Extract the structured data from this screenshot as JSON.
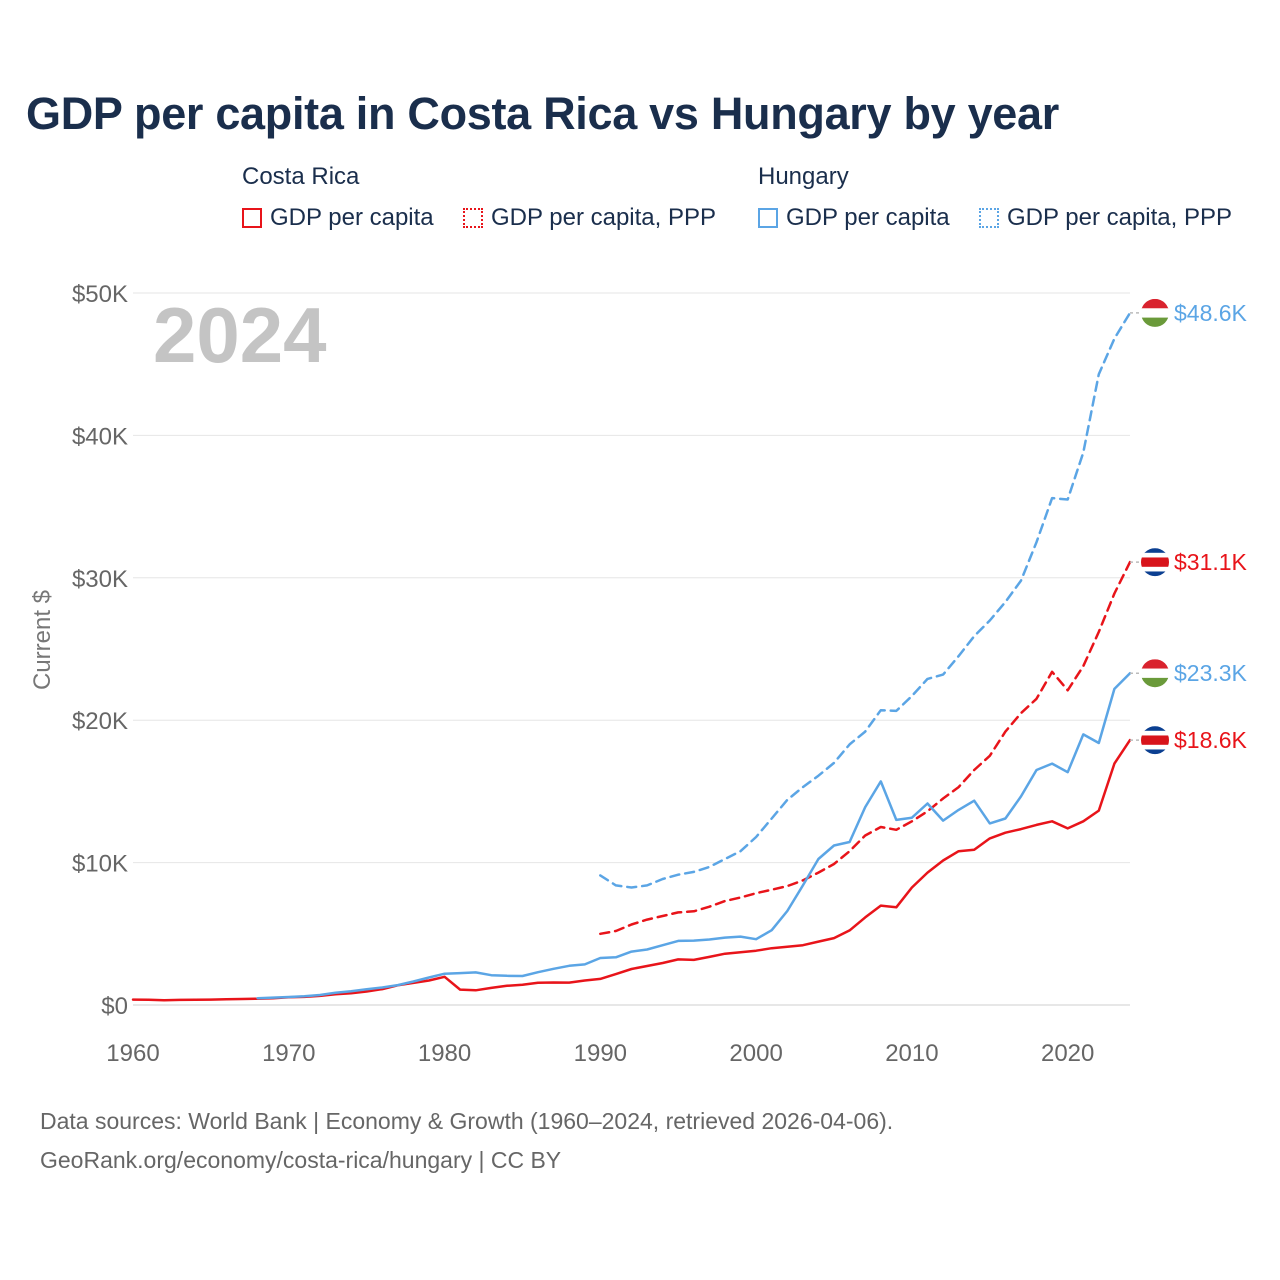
{
  "title": "GDP per capita in Costa Rica vs Hungary by year",
  "legend": {
    "groups": [
      {
        "name": "Costa Rica",
        "color": "#e8141a",
        "items": [
          {
            "label": "GDP per capita",
            "style": "solid"
          },
          {
            "label": "GDP per capita, PPP",
            "style": "dotted"
          }
        ]
      },
      {
        "name": "Hungary",
        "color": "#5ba5e5",
        "items": [
          {
            "label": "GDP per capita",
            "style": "solid"
          },
          {
            "label": "GDP per capita, PPP",
            "style": "dotted"
          }
        ]
      }
    ]
  },
  "year_label": "2024",
  "source": {
    "line1": "Data sources: World Bank | Economy & Growth (1960–2024, retrieved 2026-04-06).",
    "line2": "GeoRank.org/economy/costa-rica/hungary | CC BY"
  },
  "chart_data": {
    "type": "line",
    "title": "GDP per capita in Costa Rica vs Hungary by year",
    "xlabel": "",
    "ylabel": "Current $",
    "xlim": [
      1960,
      2024
    ],
    "ylim": [
      0,
      50000
    ],
    "x_ticks": [
      1960,
      1970,
      1980,
      1990,
      2000,
      2010,
      2020
    ],
    "y_ticks": [
      {
        "value": 0,
        "label": "$0"
      },
      {
        "value": 10000,
        "label": "$10K"
      },
      {
        "value": 20000,
        "label": "$20K"
      },
      {
        "value": 30000,
        "label": "$30K"
      },
      {
        "value": 40000,
        "label": "$40K"
      },
      {
        "value": 50000,
        "label": "$50K"
      }
    ],
    "grid": true,
    "series": [
      {
        "name": "Costa Rica GDP per capita",
        "country": "Costa Rica",
        "color": "#e8141a",
        "dash": "solid",
        "end_label": "$18.6K",
        "flag": "costa-rica",
        "points": [
          [
            1960,
            380
          ],
          [
            1961,
            370
          ],
          [
            1962,
            340
          ],
          [
            1963,
            360
          ],
          [
            1964,
            370
          ],
          [
            1965,
            380
          ],
          [
            1966,
            400
          ],
          [
            1967,
            420
          ],
          [
            1968,
            440
          ],
          [
            1969,
            470
          ],
          [
            1970,
            540
          ],
          [
            1971,
            570
          ],
          [
            1972,
            640
          ],
          [
            1973,
            760
          ],
          [
            1974,
            830
          ],
          [
            1975,
            950
          ],
          [
            1976,
            1120
          ],
          [
            1977,
            1380
          ],
          [
            1978,
            1550
          ],
          [
            1979,
            1720
          ],
          [
            1980,
            1980
          ],
          [
            1981,
            1080
          ],
          [
            1982,
            1030
          ],
          [
            1983,
            1200
          ],
          [
            1984,
            1350
          ],
          [
            1985,
            1420
          ],
          [
            1986,
            1560
          ],
          [
            1987,
            1580
          ],
          [
            1988,
            1570
          ],
          [
            1989,
            1720
          ],
          [
            1990,
            1830
          ],
          [
            1991,
            2170
          ],
          [
            1992,
            2530
          ],
          [
            1993,
            2740
          ],
          [
            1994,
            2950
          ],
          [
            1995,
            3200
          ],
          [
            1996,
            3170
          ],
          [
            1997,
            3380
          ],
          [
            1998,
            3600
          ],
          [
            1999,
            3710
          ],
          [
            2000,
            3810
          ],
          [
            2001,
            3990
          ],
          [
            2002,
            4090
          ],
          [
            2003,
            4200
          ],
          [
            2004,
            4450
          ],
          [
            2005,
            4700
          ],
          [
            2006,
            5240
          ],
          [
            2007,
            6150
          ],
          [
            2008,
            6980
          ],
          [
            2009,
            6860
          ],
          [
            2010,
            8250
          ],
          [
            2011,
            9300
          ],
          [
            2012,
            10150
          ],
          [
            2013,
            10800
          ],
          [
            2014,
            10900
          ],
          [
            2015,
            11700
          ],
          [
            2016,
            12100
          ],
          [
            2017,
            12350
          ],
          [
            2018,
            12650
          ],
          [
            2019,
            12900
          ],
          [
            2020,
            12400
          ],
          [
            2021,
            12900
          ],
          [
            2022,
            13650
          ],
          [
            2023,
            16950
          ],
          [
            2024,
            18600
          ]
        ]
      },
      {
        "name": "Costa Rica GDP per capita, PPP",
        "country": "Costa Rica",
        "color": "#e8141a",
        "dash": "dashed",
        "end_label": "$31.1K",
        "flag": "costa-rica",
        "points": [
          [
            1990,
            5000
          ],
          [
            1991,
            5200
          ],
          [
            1992,
            5650
          ],
          [
            1993,
            6000
          ],
          [
            1994,
            6250
          ],
          [
            1995,
            6500
          ],
          [
            1996,
            6580
          ],
          [
            1997,
            6900
          ],
          [
            1998,
            7300
          ],
          [
            1999,
            7550
          ],
          [
            2000,
            7850
          ],
          [
            2001,
            8100
          ],
          [
            2002,
            8350
          ],
          [
            2003,
            8750
          ],
          [
            2004,
            9300
          ],
          [
            2005,
            9900
          ],
          [
            2006,
            10800
          ],
          [
            2007,
            11900
          ],
          [
            2008,
            12500
          ],
          [
            2009,
            12300
          ],
          [
            2010,
            12900
          ],
          [
            2011,
            13600
          ],
          [
            2012,
            14500
          ],
          [
            2013,
            15300
          ],
          [
            2014,
            16500
          ],
          [
            2015,
            17500
          ],
          [
            2016,
            19200
          ],
          [
            2017,
            20500
          ],
          [
            2018,
            21500
          ],
          [
            2019,
            23400
          ],
          [
            2020,
            22100
          ],
          [
            2021,
            23800
          ],
          [
            2022,
            26200
          ],
          [
            2023,
            28900
          ],
          [
            2024,
            31100
          ]
        ]
      },
      {
        "name": "Hungary GDP per capita",
        "country": "Hungary",
        "color": "#5ba5e5",
        "dash": "solid",
        "end_label": "$23.3K",
        "flag": "hungary",
        "points": [
          [
            1968,
            480
          ],
          [
            1969,
            520
          ],
          [
            1970,
            560
          ],
          [
            1971,
            610
          ],
          [
            1972,
            700
          ],
          [
            1973,
            860
          ],
          [
            1974,
            960
          ],
          [
            1975,
            1100
          ],
          [
            1976,
            1230
          ],
          [
            1977,
            1400
          ],
          [
            1978,
            1650
          ],
          [
            1979,
            1930
          ],
          [
            1980,
            2200
          ],
          [
            1981,
            2240
          ],
          [
            1982,
            2290
          ],
          [
            1983,
            2090
          ],
          [
            1984,
            2050
          ],
          [
            1985,
            2040
          ],
          [
            1986,
            2300
          ],
          [
            1987,
            2540
          ],
          [
            1988,
            2750
          ],
          [
            1989,
            2850
          ],
          [
            1990,
            3300
          ],
          [
            1991,
            3350
          ],
          [
            1992,
            3750
          ],
          [
            1993,
            3900
          ],
          [
            1994,
            4200
          ],
          [
            1995,
            4500
          ],
          [
            1996,
            4520
          ],
          [
            1997,
            4600
          ],
          [
            1998,
            4730
          ],
          [
            1999,
            4800
          ],
          [
            2000,
            4620
          ],
          [
            2001,
            5250
          ],
          [
            2002,
            6600
          ],
          [
            2003,
            8400
          ],
          [
            2004,
            10250
          ],
          [
            2005,
            11200
          ],
          [
            2006,
            11450
          ],
          [
            2007,
            13900
          ],
          [
            2008,
            15700
          ],
          [
            2009,
            13000
          ],
          [
            2010,
            13150
          ],
          [
            2011,
            14150
          ],
          [
            2012,
            12950
          ],
          [
            2013,
            13700
          ],
          [
            2014,
            14350
          ],
          [
            2015,
            12750
          ],
          [
            2016,
            13100
          ],
          [
            2017,
            14650
          ],
          [
            2018,
            16500
          ],
          [
            2019,
            16950
          ],
          [
            2020,
            16350
          ],
          [
            2021,
            19000
          ],
          [
            2022,
            18400
          ],
          [
            2023,
            22200
          ],
          [
            2024,
            23300
          ]
        ]
      },
      {
        "name": "Hungary GDP per capita, PPP",
        "country": "Hungary",
        "color": "#5ba5e5",
        "dash": "dashed",
        "end_label": "$48.6K",
        "flag": "hungary",
        "points": [
          [
            1990,
            9100
          ],
          [
            1991,
            8400
          ],
          [
            1992,
            8250
          ],
          [
            1993,
            8400
          ],
          [
            1994,
            8850
          ],
          [
            1995,
            9150
          ],
          [
            1996,
            9350
          ],
          [
            1997,
            9700
          ],
          [
            1998,
            10250
          ],
          [
            1999,
            10800
          ],
          [
            2000,
            11800
          ],
          [
            2001,
            13100
          ],
          [
            2002,
            14400
          ],
          [
            2003,
            15300
          ],
          [
            2004,
            16100
          ],
          [
            2005,
            17000
          ],
          [
            2006,
            18300
          ],
          [
            2007,
            19200
          ],
          [
            2008,
            20700
          ],
          [
            2009,
            20650
          ],
          [
            2010,
            21700
          ],
          [
            2011,
            22900
          ],
          [
            2012,
            23200
          ],
          [
            2013,
            24500
          ],
          [
            2014,
            25900
          ],
          [
            2015,
            27000
          ],
          [
            2016,
            28300
          ],
          [
            2017,
            29800
          ],
          [
            2018,
            32500
          ],
          [
            2019,
            35600
          ],
          [
            2020,
            35500
          ],
          [
            2021,
            38800
          ],
          [
            2022,
            44300
          ],
          [
            2023,
            46800
          ],
          [
            2024,
            48600
          ]
        ]
      }
    ]
  }
}
